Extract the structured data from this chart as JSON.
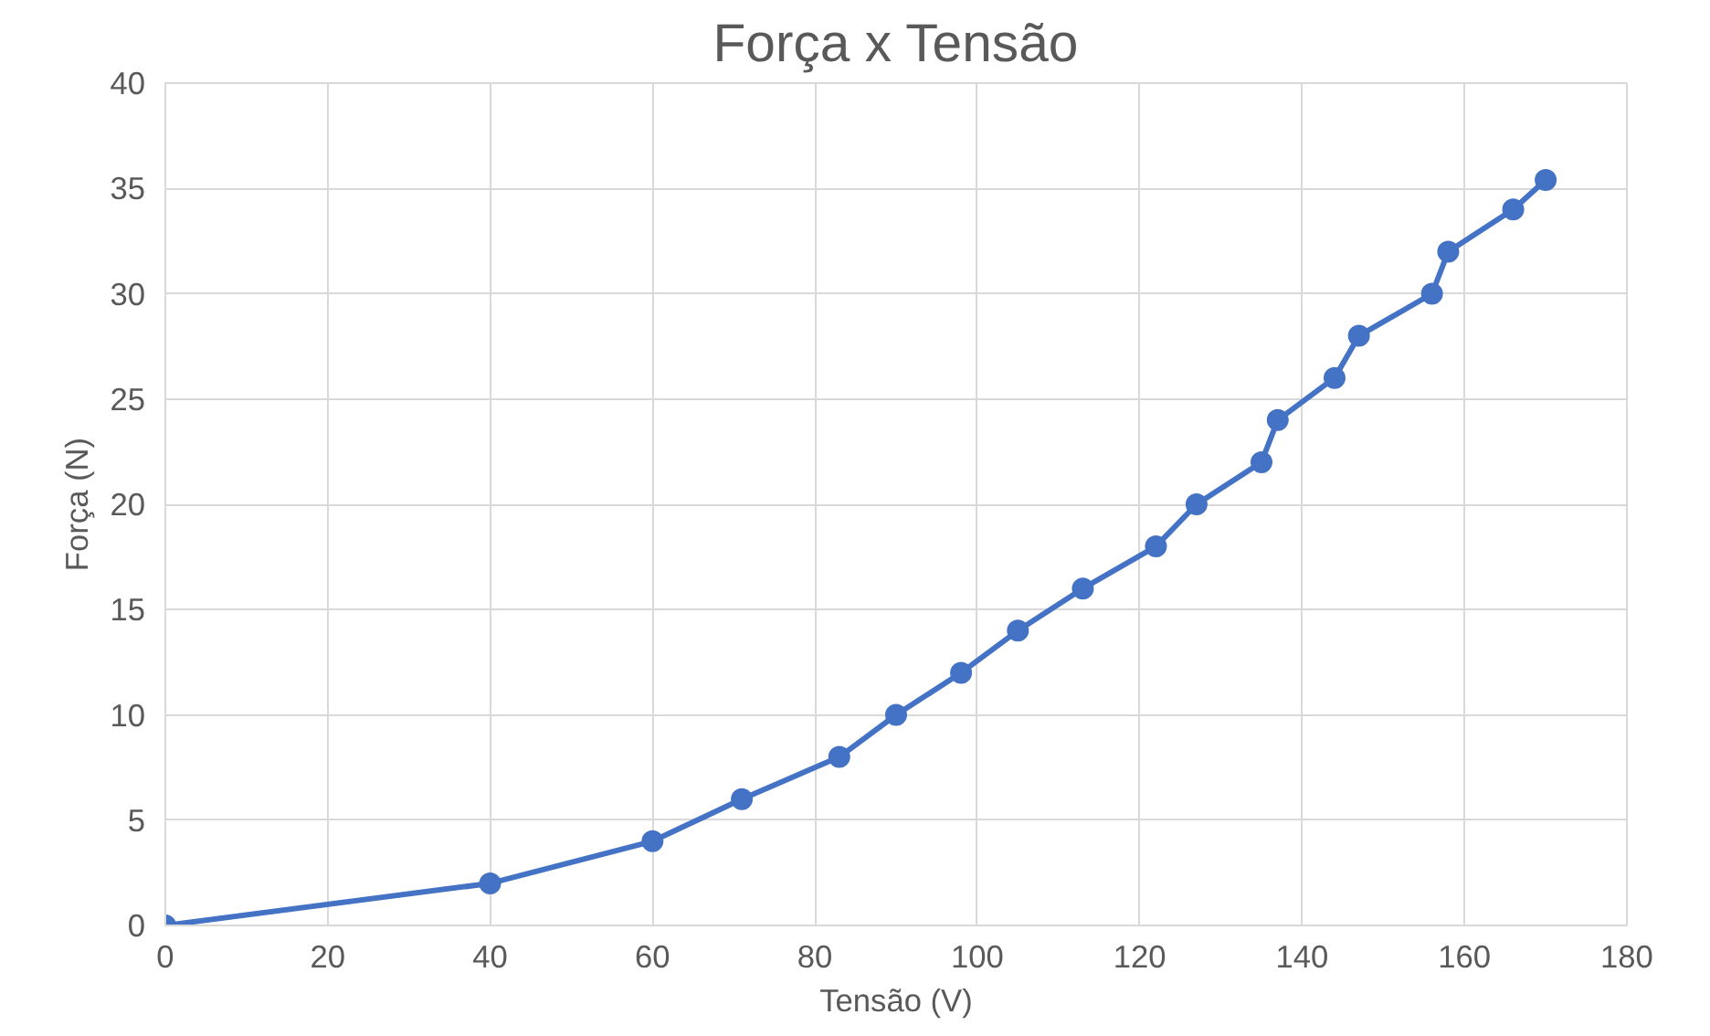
{
  "chart_data": {
    "type": "line",
    "title": "Força x Tensão",
    "xlabel": "Tensão (V)",
    "ylabel": "Força (N)",
    "x": [
      0,
      40,
      60,
      71,
      83,
      90,
      98,
      105,
      113,
      122,
      127,
      135,
      137,
      144,
      147,
      156,
      158,
      166,
      170
    ],
    "series": [
      {
        "color": "#4472c4",
        "values": [
          0,
          2,
          4,
          6,
          8,
          10,
          12,
          14,
          16,
          18,
          20,
          22,
          24,
          26,
          28,
          30,
          32,
          34,
          35.4
        ]
      }
    ],
    "xlim": [
      0,
      180
    ],
    "xticks": [
      0,
      20,
      40,
      60,
      80,
      100,
      120,
      140,
      160,
      180
    ],
    "ylim": [
      0,
      40
    ],
    "yticks": [
      0,
      5,
      10,
      15,
      20,
      25,
      30,
      35,
      40
    ],
    "grid": true,
    "marker": "circle",
    "line_style": "solid"
  }
}
